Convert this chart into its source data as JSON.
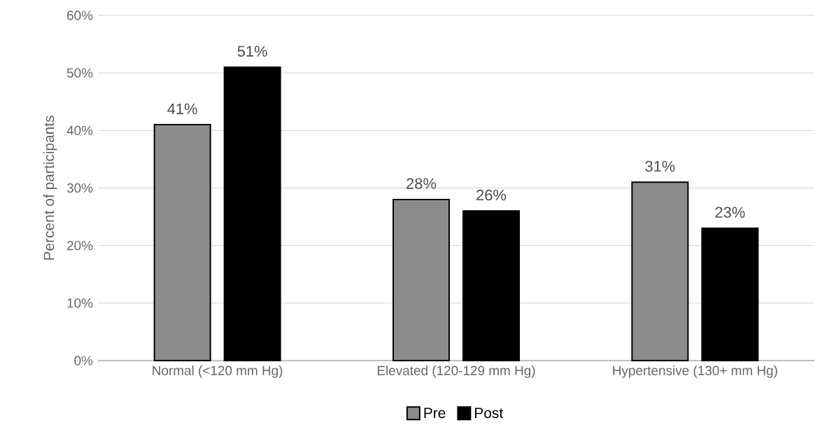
{
  "chart_data": {
    "type": "bar",
    "ylabel": "Percent of participants",
    "categories": [
      "Normal (<120 mm Hg)",
      "Elevated (120-129 mm Hg)",
      "Hypertensive (130+ mm Hg)"
    ],
    "series": [
      {
        "name": "Pre",
        "color": "#000000",
        "values": [
          41,
          28,
          31
        ],
        "value_labels": [
          "41%",
          "28%",
          "31%"
        ]
      },
      {
        "name": "Post",
        "color": "#000000",
        "values": [
          51,
          26,
          23
        ],
        "value_labels": [
          "51%",
          "26%",
          "23%"
        ]
      }
    ],
    "ylim": [
      0,
      60
    ],
    "yticks": [
      {
        "value": 0,
        "label": "0%"
      },
      {
        "value": 10,
        "label": "10%"
      },
      {
        "value": 20,
        "label": "20%"
      },
      {
        "value": 30,
        "label": "30%"
      },
      {
        "value": 40,
        "label": "40%"
      },
      {
        "value": 50,
        "label": "50%"
      },
      {
        "value": 60,
        "label": "60%"
      }
    ],
    "grid": "y",
    "legend": "bottom"
  }
}
